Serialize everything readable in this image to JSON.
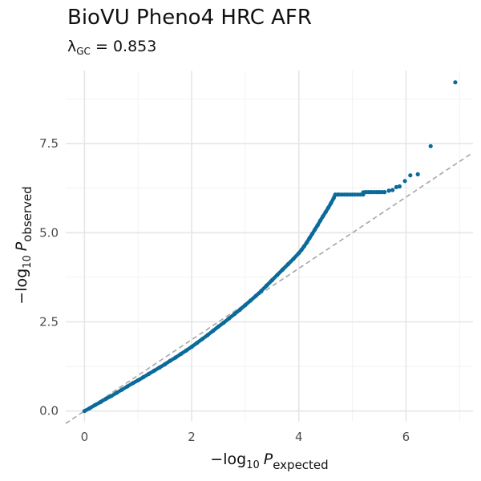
{
  "chart_data": {
    "type": "scatter",
    "title": "BioVU Pheno4 HRC AFR",
    "subtitle": {
      "symbol": "λ",
      "subscript": "GC",
      "equals": " = ",
      "value": "0.853"
    },
    "xlabel": {
      "prefix": "−log",
      "base": "10",
      "var": "P",
      "subscript": "expected"
    },
    "ylabel": {
      "prefix": "−log",
      "base": "10",
      "var": "P",
      "subscript": "observed"
    },
    "xlim": [
      -0.35,
      7.25
    ],
    "ylim": [
      -0.3,
      9.55
    ],
    "x_ticks": [
      0,
      2,
      4,
      6
    ],
    "x_tick_labels": [
      "0",
      "2",
      "4",
      "6"
    ],
    "y_ticks": [
      0,
      2.5,
      5,
      7.5
    ],
    "y_tick_labels": [
      "0.0",
      "2.5",
      "5.0",
      "7.5"
    ],
    "grid": true,
    "reference_line": "y = x (dashed)",
    "point_color": "#0a6a9a",
    "ref_line_color": "#a6a6a6",
    "series": [
      {
        "x": [
          0.0,
          0.1,
          0.2,
          0.3,
          0.4,
          0.5,
          0.6,
          0.7,
          0.8,
          0.9,
          1.0,
          1.1,
          1.2,
          1.3,
          1.4,
          1.5,
          1.6,
          1.7,
          1.8,
          1.9,
          2.0,
          2.1,
          2.2,
          2.3,
          2.4,
          2.5,
          2.6,
          2.7,
          2.8,
          2.9,
          3.0,
          3.1,
          3.2,
          3.3,
          3.4,
          3.5,
          3.6,
          3.7,
          3.8,
          3.9,
          4.0,
          4.05,
          4.1,
          4.15,
          4.2,
          4.25,
          4.3,
          4.35,
          4.4,
          4.45,
          4.5,
          4.55,
          4.6,
          4.65,
          4.68,
          4.72,
          4.75,
          4.8,
          4.85,
          4.9,
          4.95,
          5.0,
          5.05,
          5.1,
          5.15,
          5.2,
          5.25,
          5.3,
          5.35,
          5.4,
          5.45,
          5.5,
          5.55,
          5.6,
          5.68,
          5.75,
          5.82,
          5.88,
          5.98,
          6.08,
          6.22,
          6.46,
          6.92
        ],
        "y": [
          0.0,
          0.08,
          0.17,
          0.25,
          0.34,
          0.42,
          0.51,
          0.6,
          0.69,
          0.78,
          0.86,
          0.95,
          1.04,
          1.13,
          1.22,
          1.31,
          1.41,
          1.5,
          1.6,
          1.7,
          1.8,
          1.91,
          2.02,
          2.13,
          2.25,
          2.37,
          2.48,
          2.6,
          2.72,
          2.84,
          2.97,
          3.1,
          3.23,
          3.37,
          3.52,
          3.67,
          3.82,
          3.97,
          4.12,
          4.27,
          4.43,
          4.52,
          4.62,
          4.73,
          4.85,
          4.97,
          5.09,
          5.21,
          5.34,
          5.46,
          5.58,
          5.7,
          5.83,
          5.97,
          6.07,
          6.07,
          6.07,
          6.07,
          6.07,
          6.07,
          6.07,
          6.07,
          6.07,
          6.07,
          6.07,
          6.07,
          6.14,
          6.14,
          6.14,
          6.14,
          6.14,
          6.14,
          6.14,
          6.14,
          6.18,
          6.2,
          6.28,
          6.3,
          6.45,
          6.61,
          6.64,
          7.43,
          9.22
        ]
      }
    ]
  }
}
